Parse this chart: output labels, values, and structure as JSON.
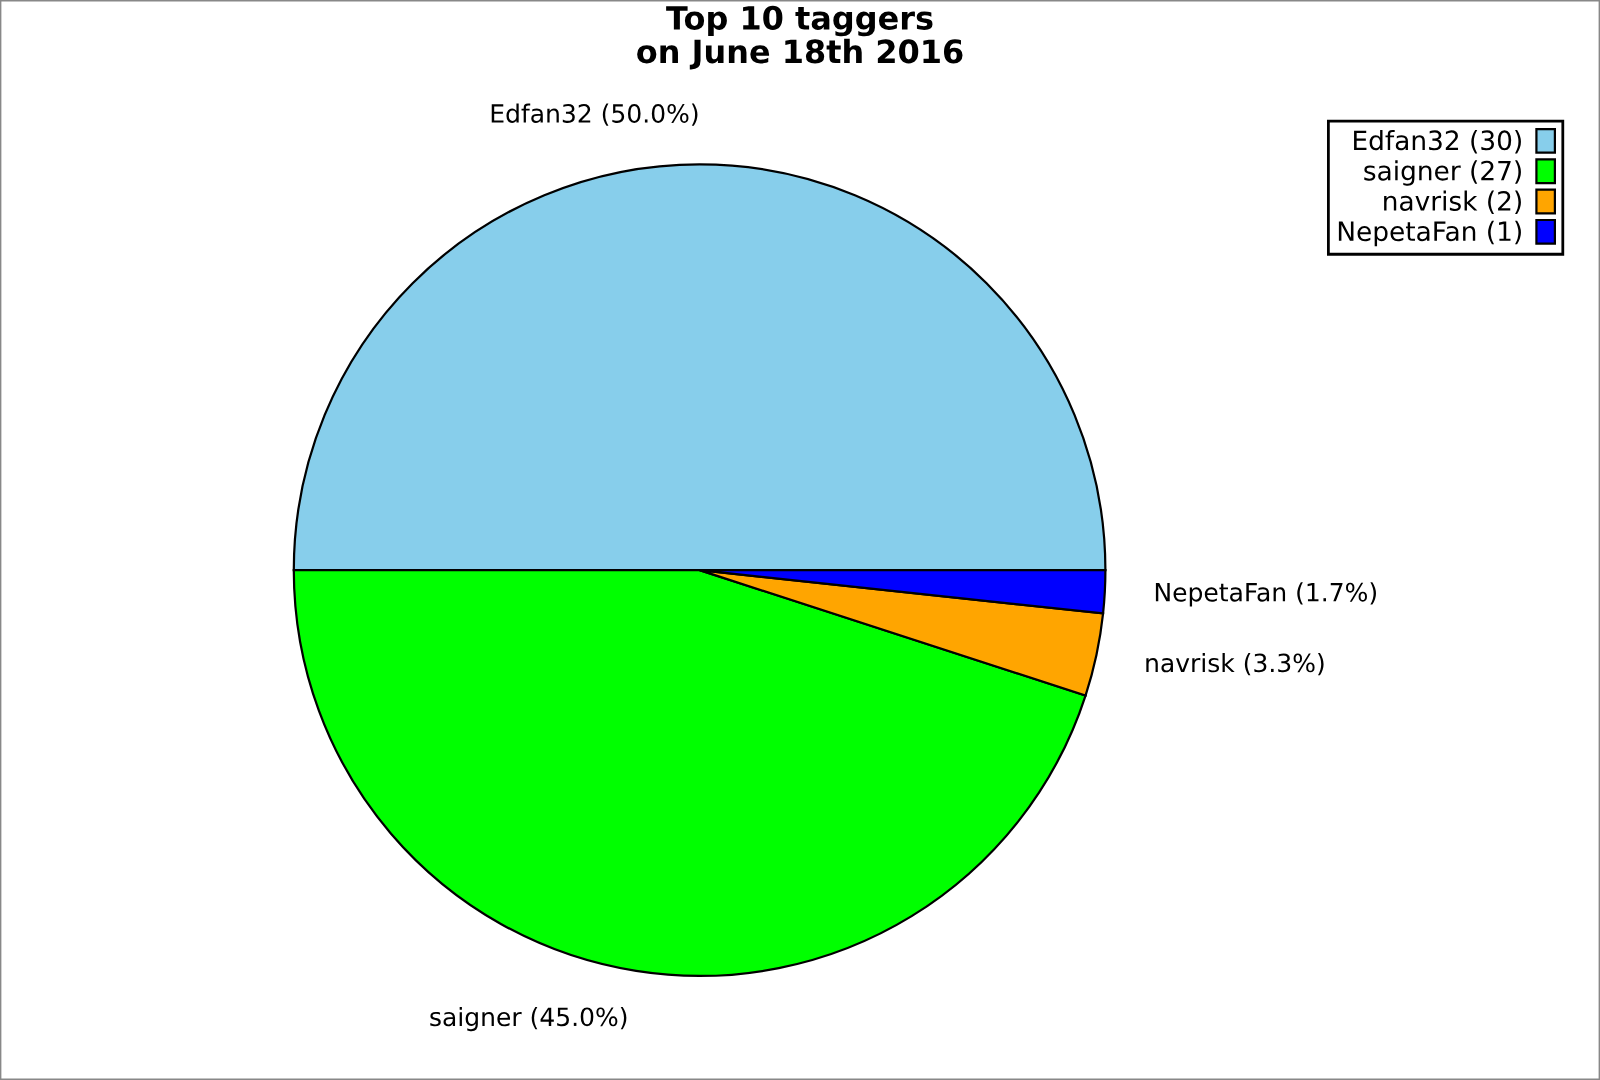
{
  "chart_data": {
    "type": "pie",
    "title": "Top 10 taggers\non June 18th 2016",
    "categories": [
      "Edfan32 (30)",
      "saigner (27)",
      "navrisk (2)",
      "NepetaFan (1)"
    ],
    "values": [
      50.0,
      45.0,
      3.3,
      1.7
    ],
    "value_labels": [
      "Edfan32 (50.0%)",
      "saigner (45.0%)",
      "navrisk (3.3%)",
      "NepetaFan (1.7%)"
    ],
    "colors": [
      "#87ceeb",
      "#00ff00",
      "#ffa500",
      "#0000ff"
    ],
    "legend": "top right"
  }
}
